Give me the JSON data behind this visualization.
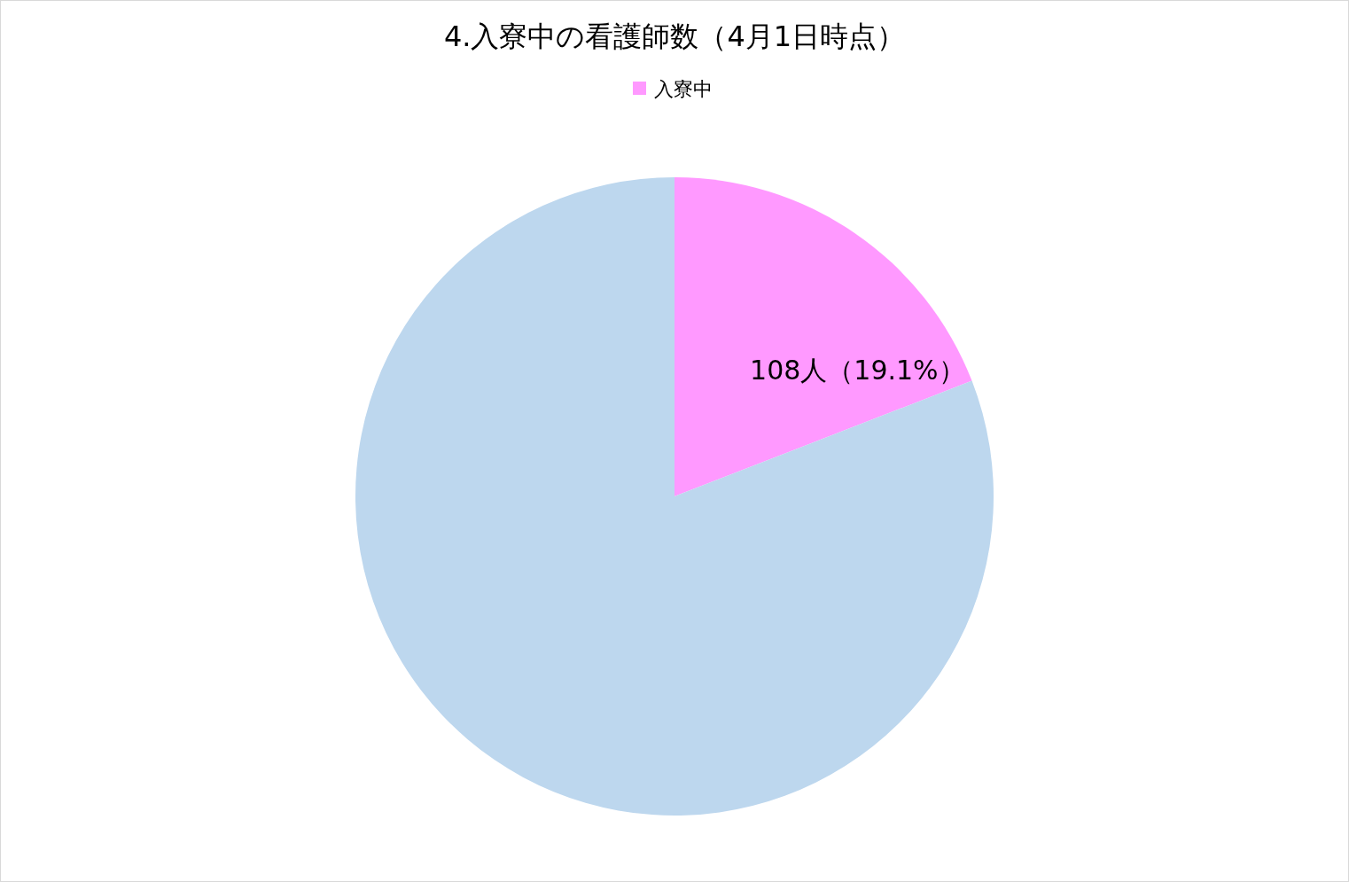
{
  "chart_data": {
    "type": "pie",
    "title": "4.入寮中の看護師数（4月1日時点）",
    "categories": [
      "入寮中",
      null
    ],
    "values": [
      19.1,
      80.9
    ],
    "colors": [
      "#ff99ff",
      "#bdd7ee"
    ],
    "value_labels": [
      "108人（19.1%）",
      null
    ],
    "legend": "top"
  }
}
